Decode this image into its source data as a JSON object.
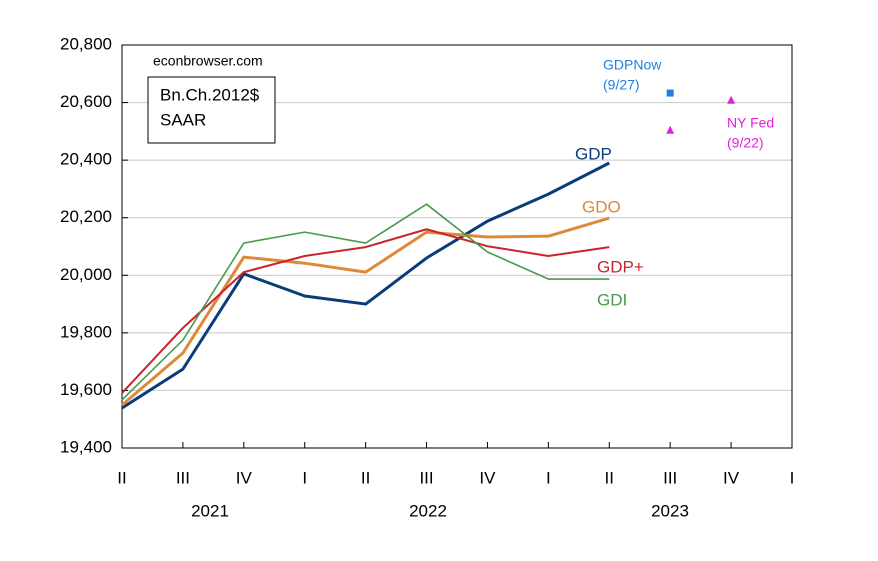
{
  "chart_data": {
    "type": "line",
    "source": "econbrowser.com",
    "units": [
      "Bn.Ch.2012$",
      "SAAR"
    ],
    "categories": [
      "II",
      "III",
      "IV",
      "I",
      "II",
      "III",
      "IV",
      "I",
      "II",
      "III",
      "IV",
      "I"
    ],
    "years": [
      "2021",
      "2022",
      "2023"
    ],
    "ylim": [
      19400,
      20800
    ],
    "yticks": [
      {
        "value": 19400,
        "label": "19,400"
      },
      {
        "value": 19600,
        "label": "19,600"
      },
      {
        "value": 19800,
        "label": "19,800"
      },
      {
        "value": 20000,
        "label": "20,000"
      },
      {
        "value": 20200,
        "label": "20,200"
      },
      {
        "value": 20400,
        "label": "20,400"
      },
      {
        "value": 20600,
        "label": "20,600"
      },
      {
        "value": 20800,
        "label": "20,800"
      }
    ],
    "grid": true,
    "series": [
      {
        "name": "GDP",
        "color": "#0b3c7a",
        "values": [
          19539,
          19674,
          20005,
          19928,
          19900,
          20060,
          20188,
          20282,
          20390,
          null,
          null,
          null
        ]
      },
      {
        "name": "GDO",
        "color": "#e0883a",
        "values": [
          19549,
          19730,
          20063,
          20042,
          20011,
          20150,
          20133,
          20136,
          20199,
          null,
          null,
          null
        ]
      },
      {
        "name": "GDP+",
        "color": "#c8242b",
        "values": [
          19591,
          19817,
          20011,
          20067,
          20098,
          20160,
          20101,
          20067,
          20098,
          null,
          null,
          null
        ]
      },
      {
        "name": "GDI",
        "color": "#4a9a4e",
        "values": [
          19567,
          19775,
          20112,
          20150,
          20112,
          20247,
          20081,
          19987,
          19987,
          null,
          null,
          null
        ]
      },
      {
        "name": "GDPNow",
        "date": "(9/27)",
        "color": "#1e7fe0",
        "marker": "square",
        "values": [
          null,
          null,
          null,
          null,
          null,
          null,
          null,
          null,
          null,
          20633,
          null,
          null
        ]
      },
      {
        "name": "NY Fed",
        "date": "(9/22)",
        "color": "#e020e0",
        "marker": "triangle",
        "values": [
          null,
          null,
          null,
          null,
          null,
          null,
          null,
          null,
          null,
          20504,
          20608,
          null
        ]
      }
    ]
  }
}
